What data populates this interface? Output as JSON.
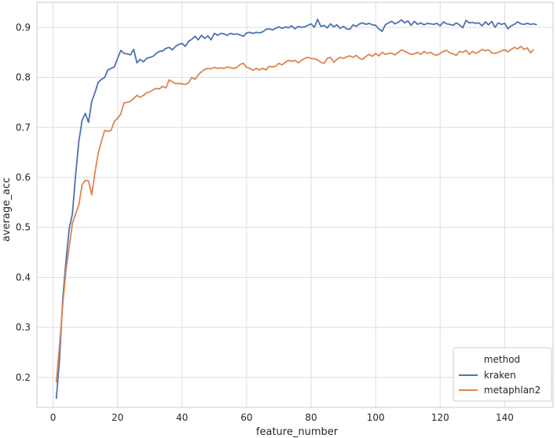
{
  "chart_data": {
    "type": "line",
    "xlabel": "feature_number",
    "ylabel": "average_acc",
    "xlim": [
      -5,
      155
    ],
    "ylim": [
      0.14,
      0.95
    ],
    "x_ticks": [
      0,
      20,
      40,
      60,
      80,
      100,
      120,
      140
    ],
    "y_ticks": [
      0.2,
      0.3,
      0.4,
      0.5,
      0.6,
      0.7,
      0.8,
      0.9
    ],
    "grid": true,
    "legend": {
      "title": "method",
      "placement": "lower-right",
      "entries": [
        "kraken",
        "metaphlan2"
      ]
    },
    "x_start": 1,
    "x_step": 1,
    "series": [
      {
        "name": "kraken",
        "color": "#4c72b0",
        "values": [
          0.157,
          0.235,
          0.356,
          0.432,
          0.497,
          0.527,
          0.605,
          0.672,
          0.714,
          0.728,
          0.71,
          0.752,
          0.77,
          0.79,
          0.796,
          0.8,
          0.815,
          0.818,
          0.821,
          0.838,
          0.854,
          0.848,
          0.847,
          0.845,
          0.856,
          0.829,
          0.836,
          0.831,
          0.838,
          0.84,
          0.842,
          0.848,
          0.852,
          0.853,
          0.858,
          0.86,
          0.855,
          0.862,
          0.866,
          0.868,
          0.862,
          0.872,
          0.876,
          0.882,
          0.875,
          0.884,
          0.878,
          0.883,
          0.875,
          0.888,
          0.884,
          0.888,
          0.887,
          0.884,
          0.888,
          0.886,
          0.887,
          0.885,
          0.882,
          0.889,
          0.89,
          0.888,
          0.89,
          0.889,
          0.891,
          0.896,
          0.897,
          0.895,
          0.898,
          0.901,
          0.898,
          0.901,
          0.899,
          0.903,
          0.897,
          0.902,
          0.9,
          0.901,
          0.904,
          0.907,
          0.9,
          0.916,
          0.902,
          0.904,
          0.899,
          0.907,
          0.901,
          0.905,
          0.898,
          0.902,
          0.897,
          0.896,
          0.905,
          0.902,
          0.907,
          0.909,
          0.906,
          0.908,
          0.905,
          0.904,
          0.897,
          0.892,
          0.905,
          0.909,
          0.912,
          0.907,
          0.91,
          0.915,
          0.909,
          0.913,
          0.904,
          0.912,
          0.906,
          0.909,
          0.905,
          0.908,
          0.907,
          0.906,
          0.908,
          0.903,
          0.911,
          0.907,
          0.906,
          0.904,
          0.909,
          0.905,
          0.899,
          0.914,
          0.909,
          0.91,
          0.908,
          0.909,
          0.903,
          0.911,
          0.905,
          0.912,
          0.9,
          0.909,
          0.906,
          0.908,
          0.897,
          0.903,
          0.906,
          0.911,
          0.907,
          0.906,
          0.908,
          0.906,
          0.907,
          0.905
        ]
      },
      {
        "name": "metaphlan2",
        "color": "#dd8452",
        "values": [
          0.19,
          0.263,
          0.345,
          0.414,
          0.46,
          0.508,
          0.527,
          0.545,
          0.585,
          0.594,
          0.593,
          0.565,
          0.61,
          0.648,
          0.672,
          0.694,
          0.692,
          0.694,
          0.712,
          0.718,
          0.727,
          0.749,
          0.75,
          0.752,
          0.758,
          0.764,
          0.76,
          0.764,
          0.769,
          0.771,
          0.775,
          0.778,
          0.777,
          0.782,
          0.779,
          0.795,
          0.791,
          0.787,
          0.788,
          0.787,
          0.786,
          0.789,
          0.8,
          0.796,
          0.805,
          0.811,
          0.816,
          0.818,
          0.817,
          0.82,
          0.818,
          0.819,
          0.818,
          0.821,
          0.819,
          0.818,
          0.82,
          0.826,
          0.828,
          0.82,
          0.818,
          0.814,
          0.818,
          0.815,
          0.818,
          0.815,
          0.822,
          0.821,
          0.822,
          0.828,
          0.825,
          0.83,
          0.834,
          0.832,
          0.834,
          0.829,
          0.834,
          0.838,
          0.84,
          0.838,
          0.837,
          0.835,
          0.83,
          0.828,
          0.838,
          0.84,
          0.83,
          0.836,
          0.84,
          0.838,
          0.841,
          0.843,
          0.84,
          0.844,
          0.838,
          0.836,
          0.842,
          0.846,
          0.842,
          0.848,
          0.843,
          0.85,
          0.846,
          0.848,
          0.848,
          0.845,
          0.85,
          0.855,
          0.852,
          0.849,
          0.846,
          0.847,
          0.85,
          0.846,
          0.852,
          0.848,
          0.85,
          0.846,
          0.844,
          0.848,
          0.852,
          0.854,
          0.849,
          0.847,
          0.844,
          0.852,
          0.85,
          0.854,
          0.846,
          0.852,
          0.848,
          0.851,
          0.856,
          0.853,
          0.855,
          0.849,
          0.848,
          0.85,
          0.853,
          0.855,
          0.851,
          0.856,
          0.86,
          0.857,
          0.862,
          0.856,
          0.859,
          0.849,
          0.856
        ]
      }
    ]
  }
}
